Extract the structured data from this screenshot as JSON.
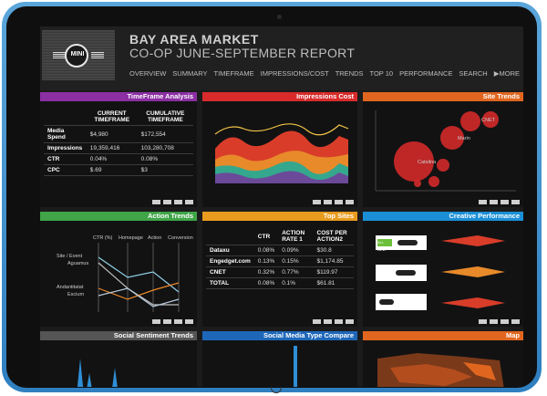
{
  "report": {
    "logo_text": "MINI",
    "title_line1": "BAY AREA MARKET",
    "title_line2": "CO-OP JUNE-SEPTEMBER REPORT"
  },
  "nav": [
    "OVERVIEW",
    "SUMMARY",
    "TIMEFRAME",
    "IMPRESSIONS/COST",
    "TRENDS",
    "TOP 10",
    "PERFORMANCE",
    "SEARCH",
    "▶MORE"
  ],
  "panels": {
    "timeframe": {
      "title": "TimeFrame Analysis",
      "accent": "#8b2fa3",
      "col1": "CURRENT TIMEFRAME",
      "col2": "CUMULATIVE TIMEFRAME",
      "rows": [
        {
          "label": "Media Spend",
          "current": "$4,980",
          "cumulative": "$172,554"
        },
        {
          "label": "Impressions",
          "current": "19,359,416",
          "cumulative": "103,280,708"
        },
        {
          "label": "CTR",
          "current": "0.04%",
          "cumulative": "0.08%"
        },
        {
          "label": "CPC",
          "current": "$.69",
          "cumulative": "$3"
        }
      ]
    },
    "impressions": {
      "title": "Impressions Cost",
      "accent": "#d92b2b"
    },
    "site_trends": {
      "title": "Site Trends",
      "accent": "#e0661f",
      "bubble_labels": [
        "Catalina",
        "Marin",
        "CNET"
      ]
    },
    "action_trends": {
      "title": "Action Trends",
      "accent": "#3fa548",
      "columns": [
        "CTR (%)",
        "Homepage",
        "Action",
        "Conversion"
      ],
      "legend": [
        "Site / Event",
        "Aguamus",
        "Andantitatat",
        "Escium"
      ]
    },
    "top_sites": {
      "title": "Top Sites",
      "accent": "#e89b1e",
      "headers": [
        "",
        "CTR",
        "ACTION RATE 1",
        "COST PER ACTION2"
      ],
      "rows": [
        {
          "site": "Dataxu",
          "ctr": "0.08%",
          "rate": "0.09%",
          "cost": "$30.8"
        },
        {
          "site": "Engedget.com",
          "ctr": "0.13%",
          "rate": "0.15%",
          "cost": "$1,174.85"
        },
        {
          "site": "CNET",
          "ctr": "0.32%",
          "rate": "0.77%",
          "cost": "$119.97"
        },
        {
          "site": "TOTAL",
          "ctr": "0.08%",
          "rate": "0.1%",
          "cost": "$61.81"
        }
      ]
    },
    "creative": {
      "title": "Creative Performance",
      "accent": "#1b8fd6",
      "items": [
        "ALL NEW",
        "",
        ""
      ]
    },
    "social_sentiment": {
      "title": "Social Sentiment Trends",
      "accent": "#555555"
    },
    "social_media_type": {
      "title": "Social Media Type Compare",
      "accent": "#1e67b8"
    },
    "map": {
      "title": "Map",
      "accent": "#e0661f"
    }
  }
}
